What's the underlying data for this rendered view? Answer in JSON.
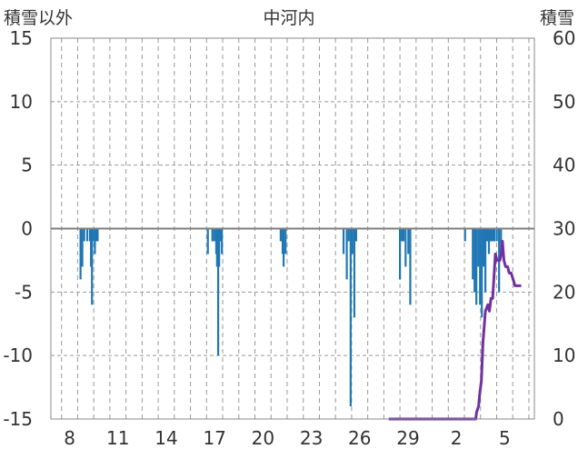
{
  "chart_data": {
    "type": "bar",
    "title": "中河内",
    "left_axis_label": "積雪以外",
    "right_axis_label": "積雪",
    "left_ylim": [
      -15,
      15
    ],
    "left_yticks": [
      15,
      10,
      5,
      0,
      -5,
      -10,
      -15
    ],
    "right_ylim": [
      0,
      60
    ],
    "right_yticks": [
      60,
      50,
      40,
      30,
      20,
      10,
      0
    ],
    "x_tick_labels": [
      "8",
      "11",
      "14",
      "17",
      "20",
      "23",
      "26",
      "29",
      "2",
      "5"
    ],
    "x_tick_days": [
      0.5,
      3.5,
      6.5,
      9.5,
      12.5,
      15.5,
      18.5,
      21.5,
      24.5,
      27.5
    ],
    "x_range_days": [
      -0.66,
      29.34
    ],
    "grid": true,
    "colors": {
      "bars": "#1f77b4",
      "snow_line": "#7030a0",
      "axis": "#888888",
      "grid": "#999999"
    },
    "series": [
      {
        "kind": "bar",
        "axis": "left",
        "points": [
          [
            1.18,
            -4.0
          ],
          [
            1.29,
            -3.0
          ],
          [
            1.41,
            -1.0
          ],
          [
            1.6,
            -1.0
          ],
          [
            1.77,
            -1.0
          ],
          [
            1.83,
            -3.0
          ],
          [
            1.89,
            -6.0
          ],
          [
            1.95,
            -1.0
          ],
          [
            2.07,
            -2.0
          ],
          [
            2.13,
            -1.0
          ],
          [
            2.24,
            -1.0
          ],
          [
            9.08,
            -2.0
          ],
          [
            9.36,
            -1.0
          ],
          [
            9.48,
            -1.0
          ],
          [
            9.6,
            -2.0
          ],
          [
            9.65,
            -3.0
          ],
          [
            9.72,
            -10.0
          ],
          [
            9.78,
            -3.0
          ],
          [
            9.89,
            -1.0
          ],
          [
            9.95,
            -2.0
          ],
          [
            13.6,
            -1.0
          ],
          [
            13.72,
            -2.0
          ],
          [
            13.78,
            -3.0
          ],
          [
            13.9,
            -2.0
          ],
          [
            17.5,
            -2.0
          ],
          [
            17.7,
            -4.0
          ],
          [
            17.82,
            -1.0
          ],
          [
            17.94,
            -14.0
          ],
          [
            18.05,
            -2.0
          ],
          [
            18.17,
            -7.0
          ],
          [
            18.28,
            -1.0
          ],
          [
            21.0,
            -4.0
          ],
          [
            21.12,
            -1.0
          ],
          [
            21.22,
            -1.0
          ],
          [
            21.35,
            -3.0
          ],
          [
            21.52,
            -2.0
          ],
          [
            21.64,
            -6.0
          ],
          [
            25.04,
            -1.0
          ],
          [
            25.52,
            -4.0
          ],
          [
            25.63,
            -5.0
          ],
          [
            25.74,
            -6.0
          ],
          [
            25.86,
            -3.0
          ],
          [
            25.97,
            -6.0
          ],
          [
            26.08,
            -7.0
          ],
          [
            26.19,
            -3.0
          ],
          [
            26.3,
            -5.0
          ],
          [
            26.41,
            -1.0
          ],
          [
            26.52,
            -2.0
          ],
          [
            26.63,
            -1.0
          ],
          [
            26.75,
            -1.0
          ],
          [
            26.86,
            -1.0
          ],
          [
            27.01,
            -1.0
          ],
          [
            27.15,
            -5.0
          ],
          [
            27.27,
            -2.0
          ]
        ]
      },
      {
        "kind": "line",
        "axis": "right",
        "name": "積雪",
        "points": [
          [
            20.3,
            0
          ],
          [
            25.7,
            0
          ],
          [
            25.75,
            1
          ],
          [
            25.88,
            2
          ],
          [
            25.95,
            4
          ],
          [
            26.05,
            6
          ],
          [
            26.15,
            12
          ],
          [
            26.3,
            17
          ],
          [
            26.45,
            18
          ],
          [
            26.55,
            17
          ],
          [
            26.65,
            19
          ],
          [
            26.75,
            19
          ],
          [
            26.85,
            23
          ],
          [
            26.92,
            26
          ],
          [
            27.02,
            25
          ],
          [
            27.12,
            25
          ],
          [
            27.2,
            25
          ],
          [
            27.28,
            26
          ],
          [
            27.36,
            28
          ],
          [
            27.45,
            25
          ],
          [
            27.55,
            24
          ],
          [
            27.68,
            24
          ],
          [
            27.78,
            23
          ],
          [
            27.9,
            23
          ],
          [
            28.02,
            22
          ],
          [
            28.14,
            21
          ],
          [
            28.28,
            21
          ],
          [
            28.4,
            21
          ],
          [
            28.52,
            21
          ]
        ]
      }
    ]
  }
}
